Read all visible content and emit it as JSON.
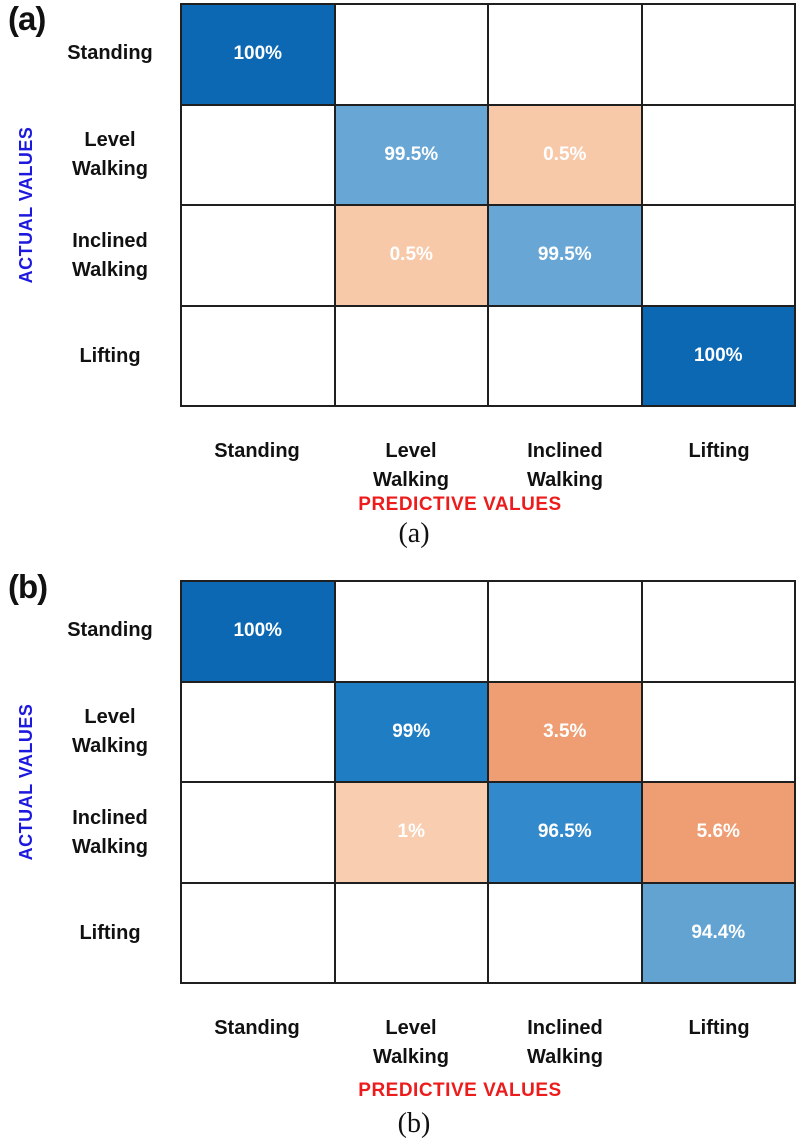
{
  "colors": {
    "blue_100": "#0d68b3",
    "blue_99": "#1e7dc3",
    "blue_96_5": "#3289cb",
    "blue_99_5": "#68a7d5",
    "blue_94_4": "#62a3d2",
    "peach_light": "#f7c9a9",
    "peach_light_b": "#f8cdb0",
    "orange_mid": "#ef9e73",
    "grid_line": "#1f1f1f",
    "actual_values_text": "#1d18de",
    "predictive_values_text": "#ed1c1c",
    "cell_text": "#ffffff"
  },
  "panels": [
    {
      "panel_label": "(a)",
      "caption": "(a)",
      "y_axis_title": "ACTUAL VALUES",
      "x_axis_title": "PREDICTIVE VALUES",
      "row_labels": [
        "Standing",
        "Level\nWalking",
        "Inclined\nWalking",
        "Lifting"
      ],
      "col_labels": [
        "Standing",
        "Level\nWalking",
        "Inclined\nWalking",
        "Lifting"
      ],
      "cells": [
        [
          {
            "v": "100%",
            "bg": "#0d68b3"
          },
          null,
          null,
          null
        ],
        [
          null,
          {
            "v": "99.5%",
            "bg": "#68a7d5"
          },
          {
            "v": "0.5%",
            "bg": "#f7c9a9"
          },
          null
        ],
        [
          null,
          {
            "v": "0.5%",
            "bg": "#f7c9a9"
          },
          {
            "v": "99.5%",
            "bg": "#68a7d5"
          },
          null
        ],
        [
          null,
          null,
          null,
          {
            "v": "100%",
            "bg": "#0d68b3"
          }
        ]
      ]
    },
    {
      "panel_label": "(b)",
      "caption": "(b)",
      "y_axis_title": "ACTUAL VALUES",
      "x_axis_title": "PREDICTIVE VALUES",
      "row_labels": [
        "Standing",
        "Level\nWalking",
        "Inclined\nWalking",
        "Lifting"
      ],
      "col_labels": [
        "Standing",
        "Level\nWalking",
        "Inclined\nWalking",
        "Lifting"
      ],
      "cells": [
        [
          {
            "v": "100%",
            "bg": "#0d68b3"
          },
          null,
          null,
          null
        ],
        [
          null,
          {
            "v": "99%",
            "bg": "#1e7dc3"
          },
          {
            "v": "3.5%",
            "bg": "#ef9e73"
          },
          null
        ],
        [
          null,
          {
            "v": "1%",
            "bg": "#f8cdb0"
          },
          {
            "v": "96.5%",
            "bg": "#3289cb"
          },
          {
            "v": "5.6%",
            "bg": "#ef9e73"
          }
        ],
        [
          null,
          null,
          null,
          {
            "v": "94.4%",
            "bg": "#62a3d2"
          }
        ]
      ]
    }
  ],
  "chart_data": [
    {
      "type": "heatmap",
      "subtype": "confusion-matrix",
      "title": "(a)",
      "xlabel": "PREDICTIVE VALUES",
      "ylabel": "ACTUAL VALUES",
      "x_categories": [
        "Standing",
        "Level Walking",
        "Inclined Walking",
        "Lifting"
      ],
      "y_categories": [
        "Standing",
        "Level Walking",
        "Inclined Walking",
        "Lifting"
      ],
      "values_percent": [
        [
          100,
          null,
          null,
          null
        ],
        [
          null,
          99.5,
          0.5,
          null
        ],
        [
          null,
          0.5,
          99.5,
          null
        ],
        [
          null,
          null,
          null,
          100
        ]
      ],
      "legend": "none",
      "grid": "on"
    },
    {
      "type": "heatmap",
      "subtype": "confusion-matrix",
      "title": "(b)",
      "xlabel": "PREDICTIVE VALUES",
      "ylabel": "ACTUAL VALUES",
      "x_categories": [
        "Standing",
        "Level Walking",
        "Inclined Walking",
        "Lifting"
      ],
      "y_categories": [
        "Standing",
        "Level Walking",
        "Inclined Walking",
        "Lifting"
      ],
      "values_percent": [
        [
          100,
          null,
          null,
          null
        ],
        [
          null,
          99,
          3.5,
          null
        ],
        [
          null,
          1,
          96.5,
          5.6
        ],
        [
          null,
          null,
          null,
          94.4
        ]
      ],
      "legend": "none",
      "grid": "on"
    }
  ]
}
